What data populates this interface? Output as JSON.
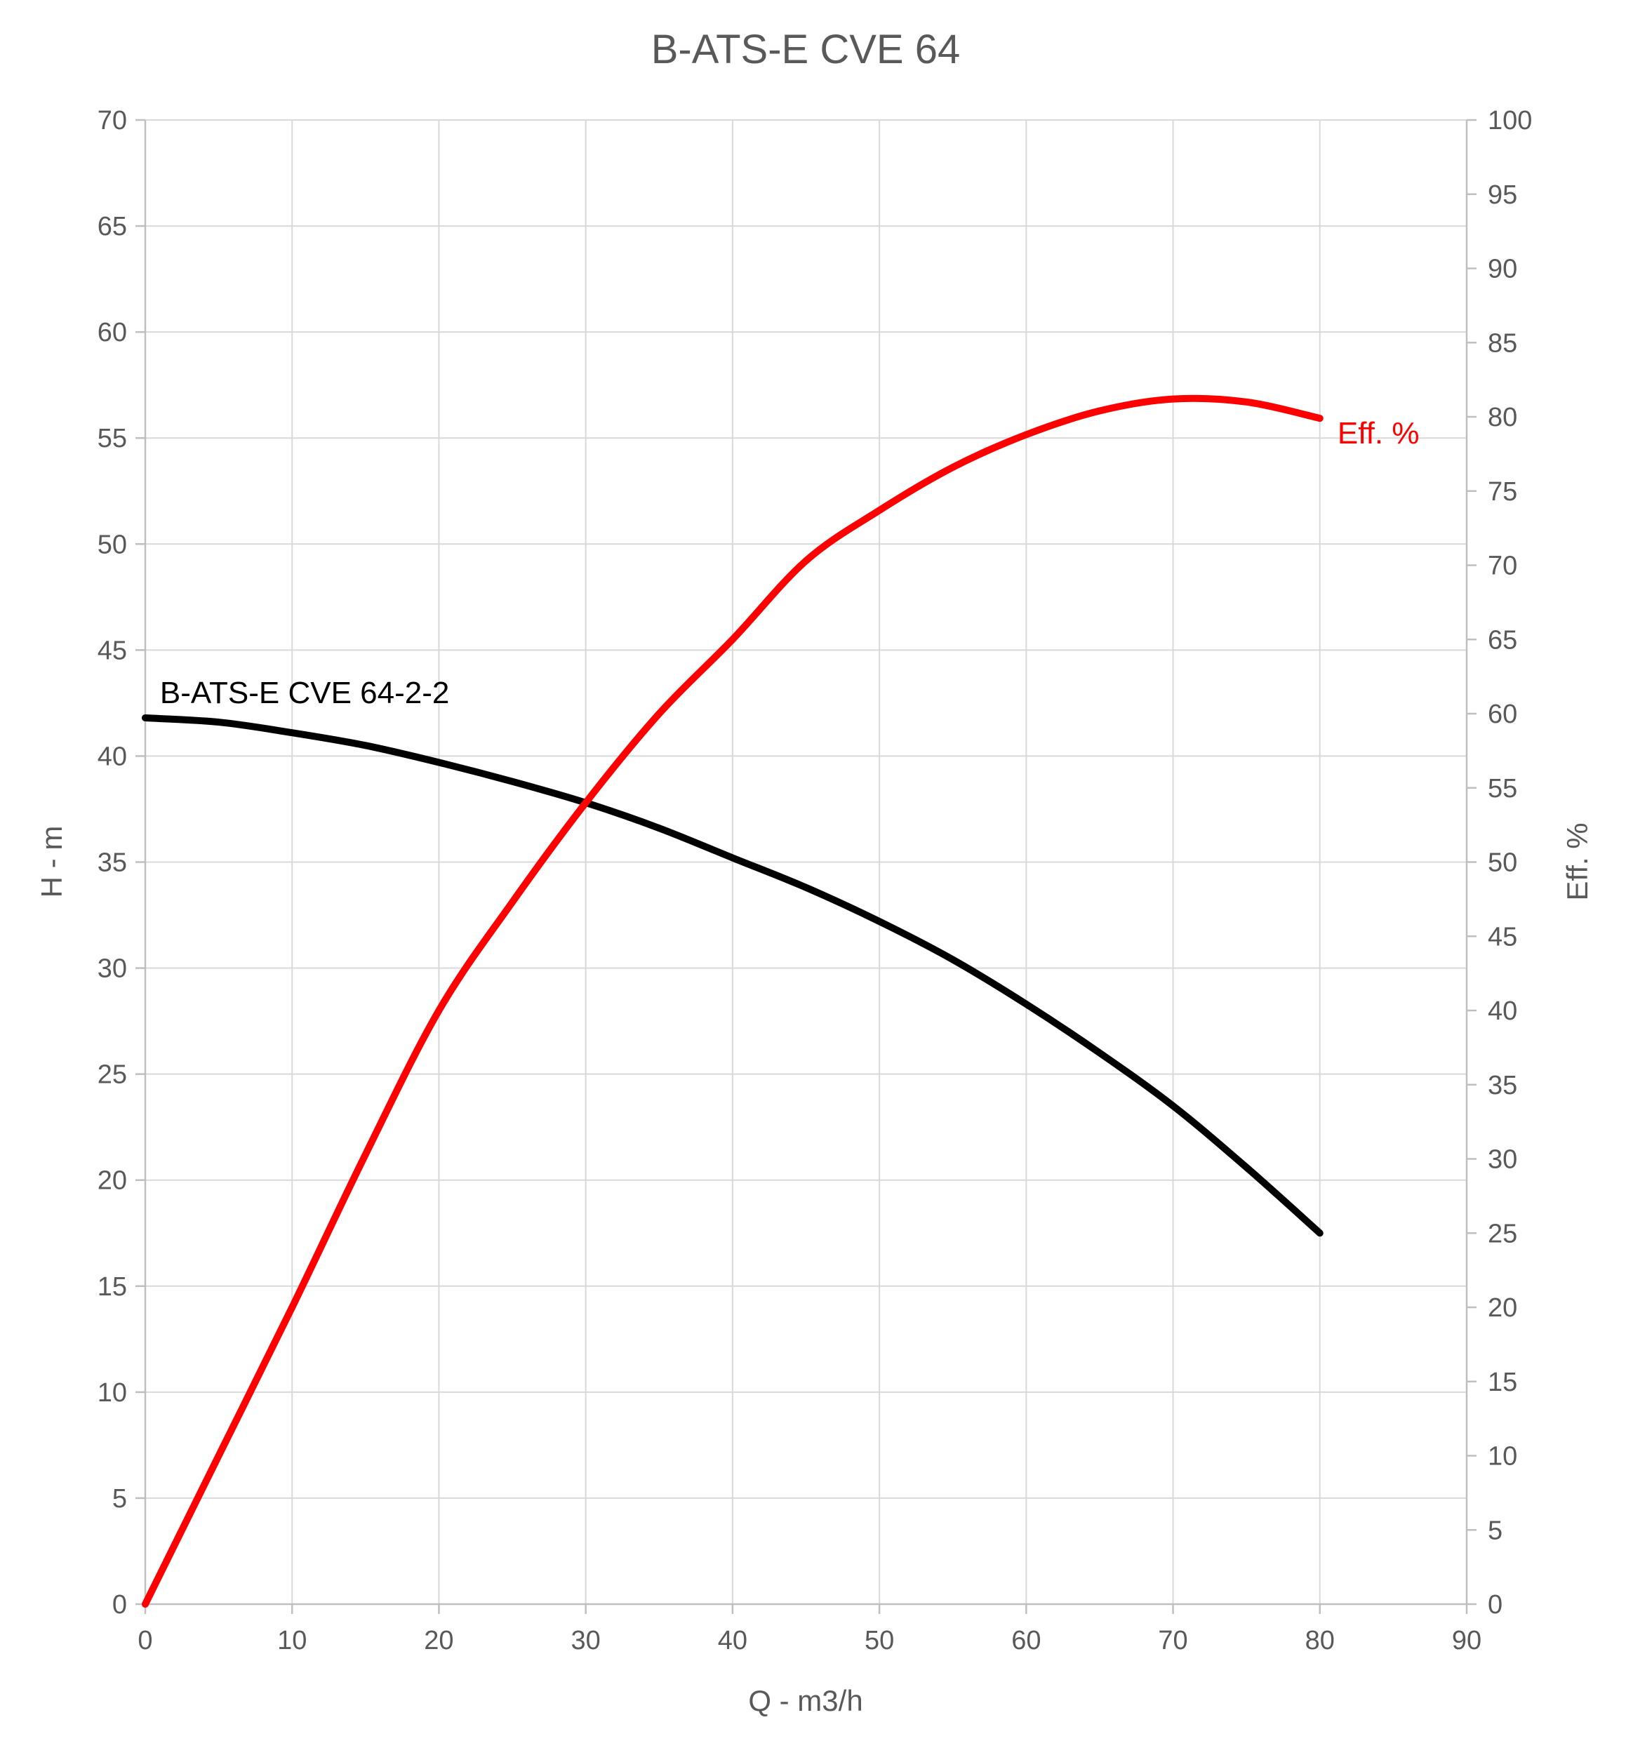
{
  "title": "B-ATS-E CVE 64",
  "colors": {
    "background": "#FFFFFF",
    "text": "#595959",
    "grid": "#D9D9D9",
    "axis_line": "#BFBFBF",
    "head_curve": "#000000",
    "efficiency_curve": "#FF0000"
  },
  "chart_data": {
    "type": "line",
    "title": "B-ATS-E CVE 64",
    "xlabel": "Q - m3/h",
    "ylabel_left": "H - m",
    "ylabel_right": "Eff. %",
    "grid": true,
    "legend_position": "none",
    "x_range": [
      0,
      90
    ],
    "y_left_range": [
      0,
      70
    ],
    "y_right_range": [
      0,
      100
    ],
    "x_ticks": [
      0,
      10,
      20,
      30,
      40,
      50,
      60,
      70,
      80,
      90
    ],
    "y_left_ticks": [
      0,
      5,
      10,
      15,
      20,
      25,
      30,
      35,
      40,
      45,
      50,
      55,
      60,
      65,
      70
    ],
    "y_right_ticks": [
      0,
      5,
      10,
      15,
      20,
      25,
      30,
      35,
      40,
      45,
      50,
      55,
      60,
      65,
      70,
      75,
      80,
      85,
      90,
      95,
      100
    ],
    "series": [
      {
        "name": "B-ATS-E CVE 64-2-2",
        "axis": "left",
        "color": "#000000",
        "x": [
          0,
          5,
          10,
          15,
          20,
          25,
          30,
          35,
          40,
          45,
          50,
          55,
          60,
          65,
          70,
          75,
          80
        ],
        "y": [
          41.8,
          41.6,
          41.1,
          40.5,
          39.7,
          38.8,
          37.8,
          36.6,
          35.2,
          33.8,
          32.2,
          30.4,
          28.3,
          26.0,
          23.5,
          20.6,
          17.5
        ],
        "label": {
          "text": "B-ATS-E CVE 64-2-2",
          "x": 1.0,
          "y": 42.5,
          "anchor": "start"
        }
      },
      {
        "name": "Eff. %",
        "axis": "right",
        "color": "#FF0000",
        "x": [
          0,
          5,
          10,
          15,
          20,
          25,
          30,
          35,
          40,
          45,
          50,
          55,
          60,
          65,
          70,
          75,
          80
        ],
        "y": [
          0,
          10.0,
          20.0,
          30.3,
          40.0,
          47.3,
          54.0,
          60.0,
          65.0,
          70.3,
          73.7,
          76.6,
          78.8,
          80.4,
          81.2,
          81.0,
          79.9
        ],
        "label": {
          "text": "Eff. %",
          "x": 81.2,
          "y": 78.2,
          "anchor": "start"
        }
      }
    ]
  }
}
